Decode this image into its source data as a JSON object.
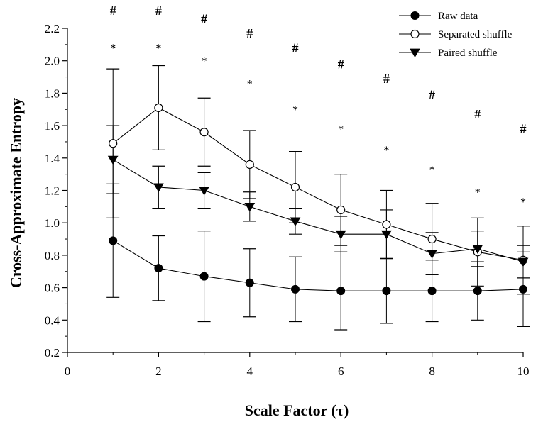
{
  "chart_data": {
    "type": "line",
    "xlabel": "Scale Factor (τ)",
    "ylabel": "Cross-Approximate Entropy",
    "xlim": [
      0,
      10
    ],
    "ylim": [
      0.2,
      2.2
    ],
    "x_ticks": [
      "0",
      "2",
      "4",
      "6",
      "8",
      "10"
    ],
    "y_ticks": [
      "0.2",
      "0.4",
      "0.6",
      "0.8",
      "1.0",
      "1.2",
      "1.4",
      "1.6",
      "1.8",
      "2.0",
      "2.2"
    ],
    "x": [
      1,
      2,
      3,
      4,
      5,
      6,
      7,
      8,
      9,
      10
    ],
    "legend_position": "top-right",
    "series": [
      {
        "name": "Raw data",
        "marker": "filled-circle",
        "values": [
          0.89,
          0.72,
          0.67,
          0.63,
          0.59,
          0.58,
          0.58,
          0.58,
          0.58,
          0.59
        ],
        "error": [
          0.35,
          0.2,
          0.28,
          0.21,
          0.2,
          0.24,
          0.2,
          0.19,
          0.18,
          0.23
        ]
      },
      {
        "name": "Separated shuffle",
        "marker": "open-circle",
        "values": [
          1.49,
          1.71,
          1.56,
          1.36,
          1.22,
          1.08,
          0.99,
          0.9,
          0.82,
          0.77
        ],
        "error": [
          0.46,
          0.26,
          0.21,
          0.21,
          0.22,
          0.22,
          0.21,
          0.22,
          0.21,
          0.21
        ]
      },
      {
        "name": "Paired shuffle",
        "marker": "filled-triangle-down",
        "values": [
          1.39,
          1.22,
          1.2,
          1.1,
          1.01,
          0.93,
          0.93,
          0.81,
          0.84,
          0.76
        ],
        "error": [
          0.21,
          0.13,
          0.11,
          0.09,
          0.08,
          0.11,
          0.15,
          0.13,
          0.11,
          0.1
        ]
      }
    ],
    "annotations": {
      "hash": {
        "label": "#",
        "x": [
          1,
          2,
          3,
          4,
          5,
          6,
          7,
          8,
          9,
          10
        ],
        "y": [
          2.31,
          2.31,
          2.26,
          2.17,
          2.08,
          1.98,
          1.89,
          1.79,
          1.67,
          1.58
        ]
      },
      "star": {
        "label": "*",
        "x": [
          1,
          2,
          3,
          4,
          5,
          6,
          7,
          8,
          9,
          10
        ],
        "y": [
          2.09,
          2.09,
          2.01,
          1.87,
          1.71,
          1.59,
          1.46,
          1.34,
          1.2,
          1.14
        ]
      }
    }
  }
}
